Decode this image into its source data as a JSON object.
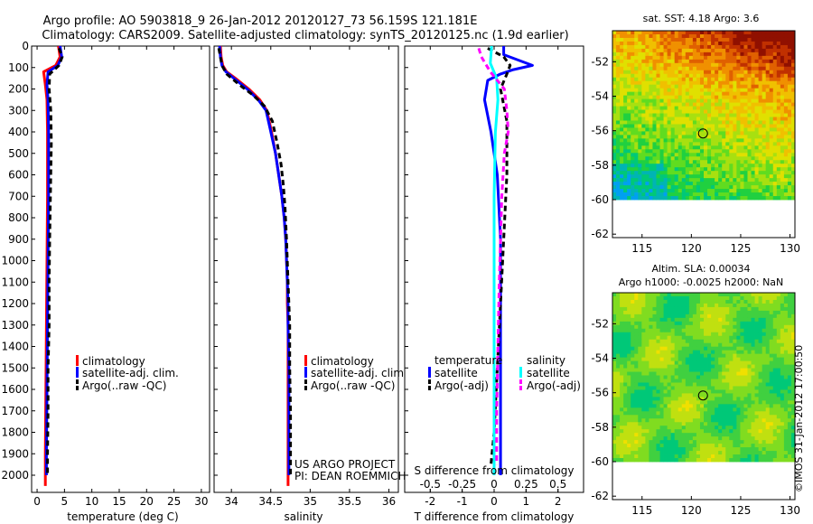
{
  "title": {
    "line1": "Argo profile: AO 5903818_9 26-Jan-2012 20120127_73 56.159S 121.181E",
    "line2": "Climatology: CARS2009. Satellite-adjusted climatology: synTS_20120125.nc (1.9d earlier)"
  },
  "colors": {
    "climatology": "#ff0000",
    "satellite": "#0000ff",
    "argo": "#000000",
    "sdiff_satellite": "#00ffff",
    "sdiff_argo": "#ff00ff"
  },
  "chart_data": [
    {
      "type": "line",
      "id": "temperature",
      "xlabel": "temperature (deg C)",
      "ylabel": "",
      "xlim": [
        -1,
        31.5
      ],
      "ylim": [
        2080,
        0
      ],
      "xticks": [
        0,
        5,
        10,
        15,
        20,
        25,
        30
      ],
      "yticks": [
        0,
        100,
        200,
        300,
        400,
        500,
        600,
        700,
        800,
        900,
        1000,
        1100,
        1200,
        1300,
        1400,
        1500,
        1600,
        1700,
        1800,
        1900,
        2000
      ],
      "legend": [
        "climatology",
        "satellite-adj. clim.",
        "Argo(..raw -QC)"
      ],
      "series": [
        {
          "name": "climatology",
          "style": "solid",
          "color_key": "climatology",
          "points": [
            [
              3.9,
              0
            ],
            [
              4.2,
              50
            ],
            [
              3.4,
              90
            ],
            [
              1.2,
              120
            ],
            [
              1.5,
              180
            ],
            [
              1.8,
              250
            ],
            [
              1.9,
              400
            ],
            [
              1.9,
              700
            ],
            [
              1.8,
              1000
            ],
            [
              1.7,
              1300
            ],
            [
              1.6,
              1600
            ],
            [
              1.5,
              1900
            ],
            [
              1.5,
              2050
            ]
          ]
        },
        {
          "name": "satellite-adj. clim.",
          "style": "solid",
          "color_key": "satellite",
          "points": [
            [
              4.2,
              0
            ],
            [
              4.5,
              50
            ],
            [
              3.8,
              90
            ],
            [
              2.0,
              120
            ],
            [
              1.8,
              180
            ],
            [
              2.0,
              250
            ],
            [
              2.1,
              400
            ],
            [
              2.1,
              700
            ],
            [
              2.0,
              1000
            ],
            [
              1.9,
              1300
            ],
            [
              1.8,
              1600
            ],
            [
              1.7,
              1900
            ],
            [
              1.7,
              2000
            ]
          ]
        },
        {
          "name": "Argo(..raw -QC)",
          "style": "dash",
          "color_key": "argo",
          "points": [
            [
              4.0,
              10
            ],
            [
              4.6,
              50
            ],
            [
              4.0,
              90
            ],
            [
              2.3,
              130
            ],
            [
              2.2,
              200
            ],
            [
              2.5,
              300
            ],
            [
              2.6,
              450
            ],
            [
              2.5,
              600
            ],
            [
              2.4,
              750
            ],
            [
              2.3,
              900
            ],
            [
              2.2,
              1100
            ],
            [
              2.2,
              1300
            ],
            [
              2.0,
              1500
            ],
            [
              2.0,
              1700
            ],
            [
              1.9,
              1900
            ],
            [
              1.9,
              2000
            ]
          ]
        }
      ]
    },
    {
      "type": "line",
      "id": "salinity",
      "xlabel": "salinity",
      "ylabel": "",
      "xlim": [
        33.78,
        36.12
      ],
      "ylim": [
        2080,
        0
      ],
      "xticks": [
        34,
        34.5,
        35,
        35.5,
        36
      ],
      "legend": [
        "climatology",
        "satellite-adj. clim.",
        "Argo(..raw -QC)"
      ],
      "credit_lines": [
        "US ARGO PROJECT",
        "PI: DEAN ROEMMICH"
      ],
      "series": [
        {
          "name": "climatology",
          "style": "solid",
          "color_key": "climatology",
          "points": [
            [
              33.86,
              0
            ],
            [
              33.87,
              50
            ],
            [
              33.89,
              90
            ],
            [
              33.94,
              120
            ],
            [
              34.05,
              150
            ],
            [
              34.22,
              200
            ],
            [
              34.36,
              250
            ],
            [
              34.45,
              300
            ],
            [
              34.51,
              400
            ],
            [
              34.56,
              500
            ],
            [
              34.6,
              600
            ],
            [
              34.64,
              700
            ],
            [
              34.67,
              800
            ],
            [
              34.69,
              900
            ],
            [
              34.7,
              1000
            ],
            [
              34.71,
              1100
            ],
            [
              34.71,
              1200
            ],
            [
              34.72,
              1300
            ],
            [
              34.72,
              1500
            ],
            [
              34.72,
              1700
            ],
            [
              34.72,
              1900
            ],
            [
              34.72,
              2050
            ]
          ]
        },
        {
          "name": "satellite-adj. clim.",
          "style": "solid",
          "color_key": "satellite",
          "points": [
            [
              33.85,
              0
            ],
            [
              33.86,
              50
            ],
            [
              33.88,
              90
            ],
            [
              33.93,
              120
            ],
            [
              34.03,
              150
            ],
            [
              34.2,
              200
            ],
            [
              34.34,
              250
            ],
            [
              34.44,
              300
            ],
            [
              34.5,
              400
            ],
            [
              34.56,
              500
            ],
            [
              34.6,
              600
            ],
            [
              34.64,
              700
            ],
            [
              34.67,
              800
            ],
            [
              34.69,
              900
            ],
            [
              34.7,
              1000
            ],
            [
              34.71,
              1100
            ],
            [
              34.72,
              1200
            ],
            [
              34.72,
              1300
            ],
            [
              34.73,
              1500
            ],
            [
              34.73,
              1700
            ],
            [
              34.73,
              1900
            ],
            [
              34.73,
              2000
            ]
          ]
        },
        {
          "name": "Argo(..raw -QC)",
          "style": "dash",
          "color_key": "argo",
          "points": [
            [
              33.84,
              10
            ],
            [
              33.86,
              50
            ],
            [
              33.88,
              90
            ],
            [
              33.94,
              130
            ],
            [
              34.1,
              180
            ],
            [
              34.28,
              230
            ],
            [
              34.42,
              280
            ],
            [
              34.52,
              350
            ],
            [
              34.58,
              450
            ],
            [
              34.63,
              550
            ],
            [
              34.66,
              650
            ],
            [
              34.68,
              750
            ],
            [
              34.7,
              900
            ],
            [
              34.72,
              1100
            ],
            [
              34.74,
              1300
            ],
            [
              34.74,
              1500
            ],
            [
              34.75,
              1700
            ],
            [
              34.75,
              1900
            ],
            [
              34.75,
              2000
            ]
          ]
        }
      ]
    },
    {
      "type": "line",
      "id": "difference",
      "xlabel": "T difference from climatology",
      "top_label": "S difference from climatology",
      "xlim": [
        -2.8,
        2.8
      ],
      "ylim": [
        2080,
        0
      ],
      "xticks": [
        -2,
        -1,
        0,
        1,
        2
      ],
      "sdiff_ticks": [
        -0.5,
        -0.25,
        0,
        0.25,
        0.5
      ],
      "legend_headers": [
        "temperature",
        "salinity"
      ],
      "legend": [
        "satellite",
        "Argo(-adj)",
        "satellite",
        "Argo(-adj)"
      ],
      "series": [
        {
          "name": "T satellite",
          "style": "solid",
          "color_key": "satellite",
          "points": [
            [
              0.3,
              0
            ],
            [
              0.3,
              40
            ],
            [
              1.2,
              90
            ],
            [
              0.6,
              110
            ],
            [
              0.2,
              130
            ],
            [
              -0.2,
              160
            ],
            [
              -0.3,
              250
            ],
            [
              -0.1,
              400
            ],
            [
              0.1,
              600
            ],
            [
              0.2,
              900
            ],
            [
              0.2,
              1300
            ],
            [
              0.2,
              1700
            ],
            [
              0.2,
              2000
            ]
          ]
        },
        {
          "name": "T Argo(-adj)",
          "style": "dash",
          "color_key": "argo",
          "points": [
            [
              -0.2,
              10
            ],
            [
              0.3,
              50
            ],
            [
              0.5,
              90
            ],
            [
              0.4,
              130
            ],
            [
              0.2,
              200
            ],
            [
              0.4,
              350
            ],
            [
              0.4,
              600
            ],
            [
              0.3,
              900
            ],
            [
              0.2,
              1200
            ],
            [
              0.1,
              1500
            ],
            [
              0.0,
              1800
            ],
            [
              -0.1,
              1950
            ]
          ]
        },
        {
          "name": "S satellite",
          "style": "solid",
          "color_key": "sdiff_satellite",
          "points": [
            [
              -0.02,
              0
            ],
            [
              -0.03,
              80
            ],
            [
              0.02,
              150
            ],
            [
              0.03,
              250
            ],
            [
              0.01,
              400
            ],
            [
              0.0,
              700
            ],
            [
              0.0,
              1100
            ],
            [
              0.0,
              1500
            ],
            [
              0.0,
              2000
            ]
          ]
        },
        {
          "name": "S Argo(-adj)",
          "style": "dash",
          "color_key": "sdiff_argo",
          "points": [
            [
              -0.12,
              10
            ],
            [
              -0.1,
              50
            ],
            [
              -0.03,
              120
            ],
            [
              0.08,
              200
            ],
            [
              0.1,
              300
            ],
            [
              0.11,
              400
            ],
            [
              0.08,
              500
            ],
            [
              0.06,
              700
            ],
            [
              0.05,
              900
            ],
            [
              0.04,
              1100
            ],
            [
              0.03,
              1400
            ],
            [
              0.02,
              1700
            ],
            [
              0.02,
              1950
            ]
          ]
        }
      ]
    },
    {
      "type": "heatmap",
      "id": "sst_map",
      "title": "sat. SST: 4.18 Argo: 3.6",
      "xlim": [
        112,
        130.5
      ],
      "ylim": [
        -62.2,
        -50.2
      ],
      "xticks": [
        115,
        120,
        125,
        130
      ],
      "yticks": [
        -52,
        -54,
        -56,
        -58,
        -60,
        -62
      ],
      "data_south_limit": -60,
      "argo_position": [
        121.181,
        -56.159
      ],
      "palette": [
        "#00a0f0",
        "#00b4b4",
        "#00c878",
        "#20d040",
        "#60dc20",
        "#a8e010",
        "#e0e000",
        "#f0c000",
        "#f09000",
        "#e06000",
        "#c03000",
        "#901000"
      ]
    },
    {
      "type": "heatmap",
      "id": "sla_map",
      "title_line1": "Altim. SLA: 0.00034",
      "title_line2": "Argo h1000: -0.0025 h2000: NaN",
      "xlim": [
        112,
        130.5
      ],
      "ylim": [
        -62.2,
        -50.2
      ],
      "xticks": [
        115,
        120,
        125,
        130
      ],
      "yticks": [
        -52,
        -54,
        -56,
        -58,
        -60,
        -62
      ],
      "data_south_limit": -60,
      "argo_position": [
        121.181,
        -56.159
      ],
      "palette": [
        "#00c878",
        "#40d040",
        "#80dc20",
        "#c0e010",
        "#f0e000",
        "#f0c000",
        "#f0a000",
        "#e08000"
      ]
    }
  ],
  "watermark": "©IMOS 31-Jan-2012 17:00:50"
}
